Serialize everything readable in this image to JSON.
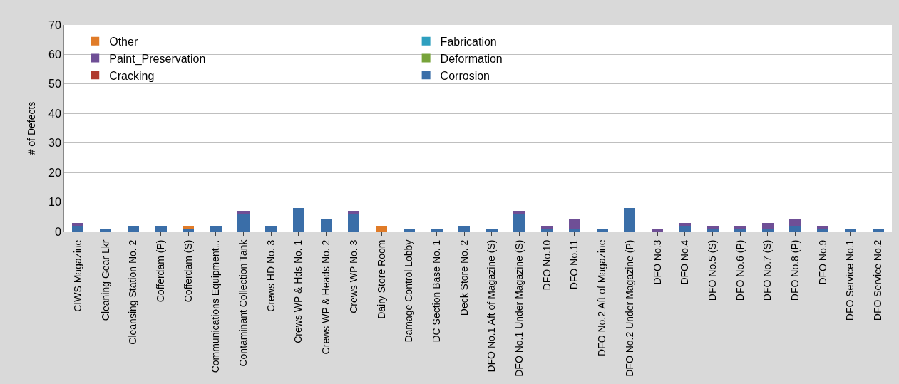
{
  "chart_data": {
    "type": "bar",
    "stacked": true,
    "ylabel": "# of Defects",
    "categories": [
      "CIWS Magazine",
      "Cleaning Gear Lkr",
      "Cleansing Station No. 2",
      "Cofferdam (P)",
      "Cofferdam (S)",
      "Communications Equipment...",
      "Contaminant Collection Tank",
      "Crews HD No. 3",
      "Crews WP & Hds No. 1",
      "Crews WP & Heads No. 2",
      "Crews WP No. 3",
      "Dairy Store Room",
      "Damage Control Lobby",
      "DC Section Base No. 1",
      "Deck Store No. 2",
      "DFO No.1 Aft of Magazine (S)",
      "DFO No.1 Under Magazine (S)",
      "DFO No.10",
      "DFO No.11",
      "DFO No.2 Aft of Magazine",
      "DFO No.2 Under Magazine (P)",
      "DFO No.3",
      "DFO No.4",
      "DFO No.5 (S)",
      "DFO No.6 (P)",
      "DFO No.7 (S)",
      "DFO No.8 (P)",
      "DFO No.9",
      "DFO Service No.1",
      "DFO Service No.2"
    ],
    "series": [
      {
        "name": "Corrosion",
        "color": "#3a6ea8",
        "values": [
          2,
          1,
          2,
          2,
          1,
          2,
          6,
          2,
          8,
          4,
          6,
          0,
          1,
          1,
          2,
          1,
          6,
          1,
          1,
          1,
          8,
          0,
          2,
          1,
          1,
          1,
          2,
          1,
          1,
          1
        ]
      },
      {
        "name": "Cracking",
        "color": "#b03a2e",
        "values": [
          0,
          0,
          0,
          0,
          0,
          0,
          0,
          0,
          0,
          0,
          0,
          0,
          0,
          0,
          0,
          0,
          0,
          0,
          0,
          0,
          0,
          0,
          0,
          0,
          0,
          0,
          0,
          0,
          0,
          0
        ]
      },
      {
        "name": "Deformation",
        "color": "#77a33a",
        "values": [
          0,
          0,
          0,
          0,
          0,
          0,
          0,
          0,
          0,
          0,
          0,
          0,
          0,
          0,
          0,
          0,
          0,
          0,
          0,
          0,
          0,
          0,
          0,
          0,
          0,
          0,
          0,
          0,
          0,
          0
        ]
      },
      {
        "name": "Paint_Preservation",
        "color": "#6f4f96",
        "values": [
          1,
          0,
          0,
          0,
          0,
          0,
          1,
          0,
          0,
          0,
          1,
          0,
          0,
          0,
          0,
          0,
          1,
          1,
          3,
          0,
          0,
          1,
          1,
          1,
          1,
          2,
          2,
          1,
          0,
          0
        ]
      },
      {
        "name": "Fabrication",
        "color": "#2e9fbf",
        "values": [
          0,
          0,
          0,
          0,
          0,
          0,
          0,
          0,
          0,
          0,
          0,
          0,
          0,
          0,
          0,
          0,
          0,
          0,
          0,
          0,
          0,
          0,
          0,
          0,
          0,
          0,
          0,
          0,
          0,
          0
        ]
      },
      {
        "name": "Other",
        "color": "#e07b28",
        "values": [
          0,
          0,
          0,
          0,
          1,
          0,
          0,
          0,
          0,
          0,
          0,
          2,
          0,
          0,
          0,
          0,
          0,
          0,
          0,
          0,
          0,
          0,
          0,
          0,
          0,
          0,
          0,
          0,
          0,
          0
        ]
      }
    ],
    "ylim": [
      0,
      70
    ],
    "yticks": [
      0,
      10,
      20,
      30,
      40,
      50,
      60,
      70
    ],
    "grid": "y",
    "legend": "top left"
  }
}
